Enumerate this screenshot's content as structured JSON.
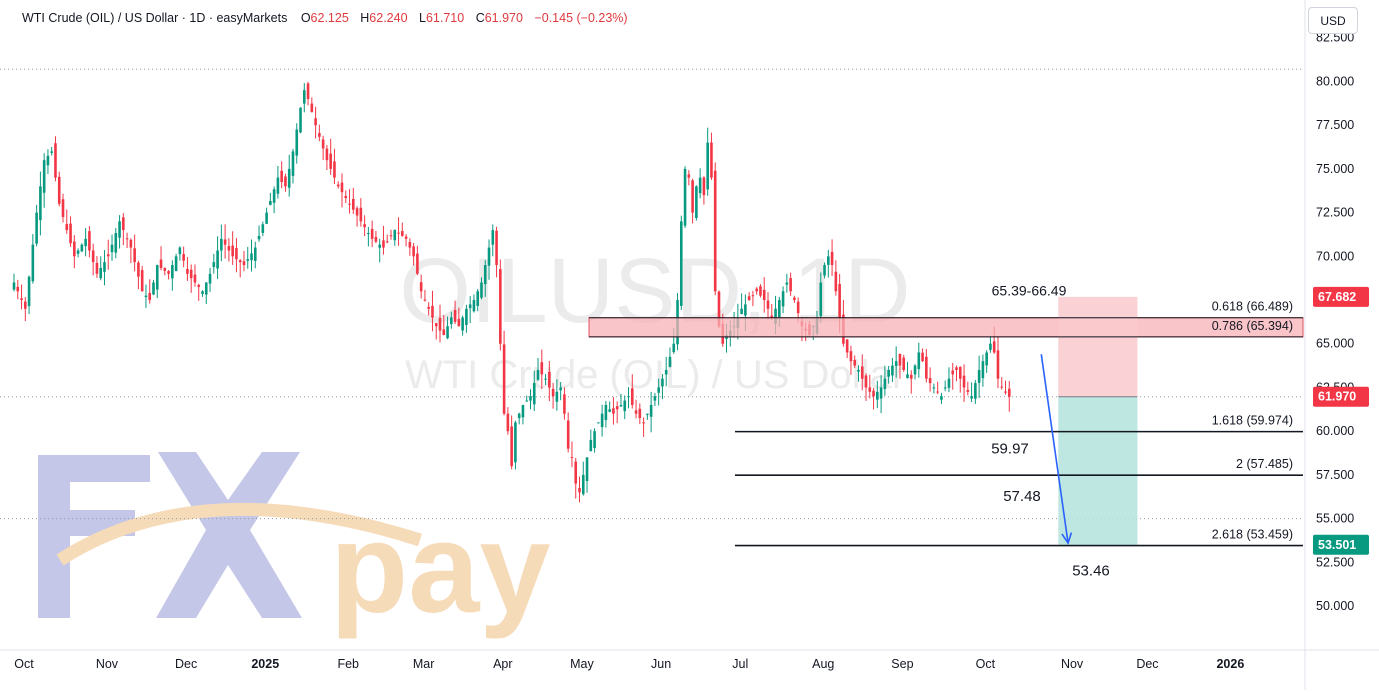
{
  "header": {
    "symbol": "WTI Crude (OIL) / US Dollar · 1D · easyMarkets",
    "open_label": "O",
    "open": "62.125",
    "high_label": "H",
    "high": "62.240",
    "low_label": "L",
    "low": "61.710",
    "close_label": "C",
    "close": "61.970",
    "change": "−0.145 (−0.23%)"
  },
  "currency_button": "USD",
  "watermark": {
    "line1": "OILUSD, 1D",
    "line2": "WTI Crude (OIL) / US Dollar"
  },
  "logo": {
    "text": "FXpay",
    "primary_color": "#6a6fc4",
    "accent_color": "#e8a24a"
  },
  "colors": {
    "up": "#089981",
    "down": "#f23645",
    "zone": "#f7b1b5",
    "target": "#b3e3dc",
    "stop": "#f9c9cc",
    "arrow": "#2962ff"
  },
  "chart_data": {
    "type": "candlestick",
    "title": "WTI Crude (OIL) / US Dollar · 1D · easyMarkets",
    "ylim": [
      48.4,
      83.4
    ],
    "y_ticks": [
      "82.500",
      "80.000",
      "77.500",
      "75.000",
      "72.500",
      "70.000",
      "67.500",
      "65.000",
      "62.500",
      "60.000",
      "57.500",
      "55.000",
      "52.500",
      "50.000"
    ],
    "x_ticks": [
      {
        "label": "Oct",
        "i": 0
      },
      {
        "label": "Nov",
        "i": 22
      },
      {
        "label": "Dec",
        "i": 43
      },
      {
        "label": "2025",
        "i": 64
      },
      {
        "label": "Feb",
        "i": 86
      },
      {
        "label": "Mar",
        "i": 106
      },
      {
        "label": "Apr",
        "i": 127
      },
      {
        "label": "May",
        "i": 148
      },
      {
        "label": "Jun",
        "i": 169
      },
      {
        "label": "Jul",
        "i": 190
      },
      {
        "label": "Aug",
        "i": 212
      },
      {
        "label": "Sep",
        "i": 233
      },
      {
        "label": "Oct",
        "i": 255
      },
      {
        "label": "Nov",
        "i": 278
      },
      {
        "label": "Dec",
        "i": 298
      },
      {
        "label": "2026",
        "i": 320
      }
    ],
    "price_anchors": [
      [
        0,
        68.5
      ],
      [
        3,
        67.0
      ],
      [
        6,
        72.5
      ],
      [
        8,
        75.5
      ],
      [
        10,
        76.0
      ],
      [
        12,
        73.0
      ],
      [
        14,
        71.5
      ],
      [
        16,
        70.0
      ],
      [
        19,
        71.0
      ],
      [
        22,
        69.0
      ],
      [
        25,
        70.0
      ],
      [
        28,
        72.0
      ],
      [
        31,
        70.5
      ],
      [
        34,
        68.0
      ],
      [
        36,
        67.5
      ],
      [
        38,
        69.5
      ],
      [
        41,
        69.0
      ],
      [
        44,
        70.5
      ],
      [
        46,
        69.0
      ],
      [
        48,
        68.5
      ],
      [
        50,
        68.0
      ],
      [
        52,
        69.0
      ],
      [
        55,
        71.0
      ],
      [
        58,
        70.0
      ],
      [
        61,
        69.5
      ],
      [
        64,
        70.5
      ],
      [
        67,
        72.5
      ],
      [
        70,
        74.5
      ],
      [
        72,
        74.0
      ],
      [
        74,
        76.0
      ],
      [
        76,
        78.5
      ],
      [
        77,
        79.5
      ],
      [
        78,
        79.0
      ],
      [
        80,
        77.5
      ],
      [
        83,
        75.5
      ],
      [
        86,
        74.0
      ],
      [
        89,
        73.0
      ],
      [
        92,
        72.0
      ],
      [
        95,
        71.0
      ],
      [
        98,
        70.5
      ],
      [
        101,
        71.5
      ],
      [
        104,
        71.0
      ],
      [
        106,
        70.0
      ],
      [
        108,
        68.0
      ],
      [
        110,
        67.0
      ],
      [
        112,
        66.0
      ],
      [
        114,
        65.5
      ],
      [
        116,
        66.5
      ],
      [
        118,
        66.0
      ],
      [
        120,
        67.0
      ],
      [
        122,
        67.5
      ],
      [
        124,
        68.5
      ],
      [
        126,
        70.5
      ],
      [
        127,
        71.5
      ],
      [
        128,
        69.5
      ],
      [
        129,
        65.0
      ],
      [
        130,
        61.0
      ],
      [
        131,
        60.0
      ],
      [
        132,
        58.0
      ],
      [
        133,
        60.5
      ],
      [
        135,
        61.5
      ],
      [
        137,
        62.0
      ],
      [
        139,
        63.5
      ],
      [
        141,
        63.0
      ],
      [
        143,
        62.0
      ],
      [
        145,
        62.5
      ],
      [
        146,
        61.0
      ],
      [
        147,
        59.0
      ],
      [
        148,
        58.5
      ],
      [
        149,
        57.0
      ],
      [
        150,
        56.5
      ],
      [
        151,
        57.5
      ],
      [
        153,
        59.5
      ],
      [
        155,
        60.5
      ],
      [
        157,
        61.5
      ],
      [
        159,
        61.0
      ],
      [
        161,
        61.5
      ],
      [
        163,
        62.0
      ],
      [
        165,
        61.0
      ],
      [
        167,
        60.5
      ],
      [
        169,
        61.5
      ],
      [
        171,
        62.5
      ],
      [
        173,
        63.5
      ],
      [
        175,
        65.0
      ],
      [
        176,
        67.5
      ],
      [
        177,
        72.0
      ],
      [
        178,
        75.0
      ],
      [
        179,
        74.5
      ],
      [
        180,
        72.5
      ],
      [
        181,
        74.0
      ],
      [
        182,
        74.5
      ],
      [
        183,
        73.5
      ],
      [
        184,
        76.5
      ],
      [
        185,
        74.5
      ],
      [
        186,
        68.0
      ],
      [
        187,
        66.0
      ],
      [
        188,
        65.0
      ],
      [
        189,
        65.5
      ],
      [
        191,
        66.0
      ],
      [
        193,
        67.0
      ],
      [
        195,
        67.5
      ],
      [
        197,
        68.0
      ],
      [
        199,
        67.5
      ],
      [
        201,
        66.5
      ],
      [
        203,
        67.5
      ],
      [
        205,
        68.5
      ],
      [
        207,
        67.5
      ],
      [
        209,
        66.0
      ],
      [
        211,
        65.5
      ],
      [
        213,
        66.5
      ],
      [
        214,
        68.5
      ],
      [
        215,
        69.5
      ],
      [
        216,
        70.0
      ],
      [
        217,
        69.5
      ],
      [
        218,
        68.0
      ],
      [
        219,
        66.5
      ],
      [
        220,
        65.0
      ],
      [
        222,
        64.0
      ],
      [
        224,
        63.5
      ],
      [
        226,
        62.5
      ],
      [
        228,
        62.0
      ],
      [
        230,
        62.5
      ],
      [
        232,
        63.5
      ],
      [
        234,
        64.0
      ],
      [
        236,
        63.5
      ],
      [
        238,
        63.0
      ],
      [
        240,
        64.5
      ],
      [
        241,
        64.0
      ],
      [
        242,
        63.0
      ],
      [
        244,
        62.5
      ],
      [
        246,
        62.0
      ],
      [
        248,
        63.0
      ],
      [
        250,
        63.5
      ],
      [
        252,
        62.5
      ],
      [
        254,
        62.0
      ],
      [
        256,
        63.5
      ],
      [
        258,
        64.5
      ],
      [
        259,
        65.0
      ],
      [
        260,
        64.5
      ],
      [
        261,
        63.0
      ],
      [
        262,
        62.5
      ],
      [
        263,
        62.2
      ],
      [
        264,
        61.97
      ]
    ],
    "last_close": 61.97,
    "resistance_zone": {
      "label": "65.39-66.49",
      "from": 65.394,
      "to": 66.489
    },
    "fib_levels": [
      {
        "label": "0.618 (66.489)",
        "value": 66.489
      },
      {
        "label": "0.786 (65.394)",
        "value": 65.394
      },
      {
        "label": "1.618 (59.974)",
        "value": 59.974
      },
      {
        "label": "2 (57.485)",
        "value": 57.485
      },
      {
        "label": "2.618 (53.459)",
        "value": 53.459
      }
    ],
    "targets": [
      {
        "label": "59.97",
        "value": 59.974
      },
      {
        "label": "57.48",
        "value": 57.485
      },
      {
        "label": "53.46",
        "value": 53.459
      }
    ],
    "price_tags": [
      {
        "label": "67.682",
        "value": 67.682,
        "color": "#f23645"
      },
      {
        "label": "61.970",
        "value": 61.97,
        "color": "#f23645"
      },
      {
        "label": "53.501",
        "value": 53.501,
        "color": "#089981"
      }
    ],
    "position": {
      "entry": 61.97,
      "stop": 67.682,
      "target": 53.501,
      "start_i": 277,
      "end_i": 298
    },
    "projection_arrow": {
      "from_i": 264,
      "from_value": 64.4,
      "to_i": 278,
      "to_value": 53.6
    },
    "reference_dotted": [
      80.7,
      61.97,
      55.0
    ]
  }
}
